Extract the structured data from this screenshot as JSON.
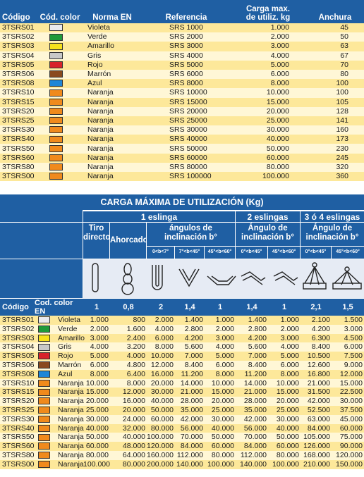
{
  "table1": {
    "headers": [
      "Código",
      "Cód. color",
      "Norma EN",
      "Referencia",
      "Carga max.\nde utiliz. kg",
      "Anchura"
    ],
    "rows": [
      {
        "code": "3TSRS01",
        "color": "#e9e9ee",
        "name": "Violeta",
        "ref": "SRS 1000",
        "carga": "1.000",
        "anchura": "45"
      },
      {
        "code": "3TSRS02",
        "color": "#1f9a3a",
        "name": "Verde",
        "ref": "SRS 2000",
        "carga": "2.000",
        "anchura": "50"
      },
      {
        "code": "3TSRS03",
        "color": "#f6e11b",
        "name": "Amarillo",
        "ref": "SRS 3000",
        "carga": "3.000",
        "anchura": "63"
      },
      {
        "code": "3TSRS04",
        "color": "#c8c8c8",
        "name": "Gris",
        "ref": "SRS 4000",
        "carga": "4.000",
        "anchura": "67"
      },
      {
        "code": "3TSRS05",
        "color": "#d8232a",
        "name": "Rojo",
        "ref": "SRS 5000",
        "carga": "5.000",
        "anchura": "70"
      },
      {
        "code": "3TSRS06",
        "color": "#8a4a1f",
        "name": "Marrón",
        "ref": "SRS 6000",
        "carga": "6.000",
        "anchura": "80"
      },
      {
        "code": "3TSRS08",
        "color": "#1f86d6",
        "name": "Azul",
        "ref": "SRS 8000",
        "carga": "8.000",
        "anchura": "100"
      },
      {
        "code": "3TSRS10",
        "color": "#f08a1c",
        "name": "Naranja",
        "ref": "SRS 10000",
        "carga": "10.000",
        "anchura": "100"
      },
      {
        "code": "3TSRS15",
        "color": "#f08a1c",
        "name": "Naranja",
        "ref": "SRS 15000",
        "carga": "15.000",
        "anchura": "105"
      },
      {
        "code": "3TSRS20",
        "color": "#f08a1c",
        "name": "Naranja",
        "ref": "SRS 20000",
        "carga": "20.000",
        "anchura": "128"
      },
      {
        "code": "3TSRS25",
        "color": "#f08a1c",
        "name": "Naranja",
        "ref": "SRS 25000",
        "carga": "25.000",
        "anchura": "141"
      },
      {
        "code": "3TSRS30",
        "color": "#f08a1c",
        "name": "Naranja",
        "ref": "SRS 30000",
        "carga": "30.000",
        "anchura": "160"
      },
      {
        "code": "3TSRS40",
        "color": "#f08a1c",
        "name": "Naranja",
        "ref": "SRS 40000",
        "carga": "40.000",
        "anchura": "173"
      },
      {
        "code": "3TSRS50",
        "color": "#f08a1c",
        "name": "Naranja",
        "ref": "SRS 50000",
        "carga": "50.000",
        "anchura": "230"
      },
      {
        "code": "3TSRS60",
        "color": "#f08a1c",
        "name": "Naranja",
        "ref": "SRS 60000",
        "carga": "60.000",
        "anchura": "245"
      },
      {
        "code": "3TSRS80",
        "color": "#f08a1c",
        "name": "Naranja",
        "ref": "SRS 80000",
        "carga": "80.000",
        "anchura": "320"
      },
      {
        "code": "3TSRS00",
        "color": "#f08a1c",
        "name": "Naranja",
        "ref": "SRS 100000",
        "carga": "100.000",
        "anchura": "360"
      }
    ]
  },
  "section_title": "CARGA MÁXIMA DE UTILIZACIÓN (Kg)",
  "table2_header": {
    "group_1": "1 eslinga",
    "group_2": "2 eslingas",
    "group_3": "3 ó 4 eslingas",
    "tiro": "Tiro\ndirecto",
    "ahorcado": "Ahorcado",
    "angulos_1": "ángulos de\ninclinación b°",
    "angulos_2": "Ángulo de\ninclinación b°",
    "angulos_3": "Ángulo de\ninclinación b°",
    "angle_ranges": [
      "0<b<7°",
      "7°<b<45°",
      "45°<b<60°",
      "0°<b<45°",
      "45°<b<60°",
      "0°<b<45°",
      "45°<b<60°"
    ],
    "factors": [
      "1",
      "0,8",
      "2",
      "1,4",
      "1",
      "1,4",
      "1",
      "2,1",
      "1,5"
    ]
  },
  "table2": {
    "headers": [
      "Código",
      "Cod. color EN"
    ],
    "rows": [
      {
        "code": "3TSRS01",
        "color": "#e9e9ee",
        "name": "Violeta",
        "v": [
          "1.000",
          "800",
          "2.000",
          "1.400",
          "1.000",
          "1.400",
          "1.000",
          "2.100",
          "1.500"
        ]
      },
      {
        "code": "3TSRS02",
        "color": "#1f9a3a",
        "name": "Verde",
        "v": [
          "2.000",
          "1.600",
          "4.000",
          "2.800",
          "2.000",
          "2.800",
          "2.000",
          "4.200",
          "3.000"
        ]
      },
      {
        "code": "3TSRS03",
        "color": "#f6e11b",
        "name": "Amarillo",
        "v": [
          "3.000",
          "2.400",
          "6.000",
          "4.200",
          "3.000",
          "4.200",
          "3.000",
          "6.300",
          "4.500"
        ]
      },
      {
        "code": "3TSRS04",
        "color": "#c8c8c8",
        "name": "Gris",
        "v": [
          "4.000",
          "3.200",
          "8.000",
          "5.600",
          "4.000",
          "5.600",
          "4.000",
          "8.400",
          "6.000"
        ]
      },
      {
        "code": "3TSRS05",
        "color": "#d8232a",
        "name": "Rojo",
        "v": [
          "5.000",
          "4.000",
          "10.000",
          "7.000",
          "5.000",
          "7.000",
          "5.000",
          "10.500",
          "7.500"
        ]
      },
      {
        "code": "3TSRS06",
        "color": "#8a4a1f",
        "name": "Marrón",
        "v": [
          "6.000",
          "4.800",
          "12.000",
          "8.400",
          "6.000",
          "8.400",
          "6.000",
          "12.600",
          "9.000"
        ]
      },
      {
        "code": "3TSRS08",
        "color": "#1f86d6",
        "name": "Azul",
        "v": [
          "8.000",
          "6.400",
          "16.000",
          "11.200",
          "8.000",
          "11.200",
          "8.000",
          "16.800",
          "12.000"
        ]
      },
      {
        "code": "3TSRS10",
        "color": "#f08a1c",
        "name": "Naranja",
        "v": [
          "10.000",
          "8.000",
          "20.000",
          "14.000",
          "10.000",
          "14.000",
          "10.000",
          "21.000",
          "15.000"
        ]
      },
      {
        "code": "3TSRS15",
        "color": "#f08a1c",
        "name": "Naranja",
        "v": [
          "15.000",
          "12.000",
          "30.000",
          "21.000",
          "15.000",
          "21.000",
          "15.000",
          "31.500",
          "22.500"
        ]
      },
      {
        "code": "3TSRS20",
        "color": "#f08a1c",
        "name": "Naranja",
        "v": [
          "20.000",
          "16.000",
          "40.000",
          "28.000",
          "20.000",
          "28.000",
          "20.000",
          "42.000",
          "30.000"
        ]
      },
      {
        "code": "3TSRS25",
        "color": "#f08a1c",
        "name": "Naranja",
        "v": [
          "25.000",
          "20.000",
          "50.000",
          "35.000",
          "25.000",
          "35.000",
          "25.000",
          "52.500",
          "37.500"
        ]
      },
      {
        "code": "3TSRS30",
        "color": "#f08a1c",
        "name": "Naranja",
        "v": [
          "30.000",
          "24.000",
          "60.000",
          "42.000",
          "30.000",
          "42.000",
          "30.000",
          "63.000",
          "45.000"
        ]
      },
      {
        "code": "3TSRS40",
        "color": "#f08a1c",
        "name": "Naranja",
        "v": [
          "40.000",
          "32.000",
          "80.000",
          "56.000",
          "40.000",
          "56.000",
          "40.000",
          "84.000",
          "60.000"
        ]
      },
      {
        "code": "3TSRS50",
        "color": "#f08a1c",
        "name": "Naranja",
        "v": [
          "50.000",
          "40.000",
          "100.000",
          "70.000",
          "50.000",
          "70.000",
          "50.000",
          "105.000",
          "75.000"
        ]
      },
      {
        "code": "3TSRS60",
        "color": "#f08a1c",
        "name": "Naranja",
        "v": [
          "60.000",
          "48.000",
          "120.000",
          "84.000",
          "60.000",
          "84.000",
          "60.000",
          "126.000",
          "90.000"
        ]
      },
      {
        "code": "3TSRS80",
        "color": "#f08a1c",
        "name": "Naranja",
        "v": [
          "80.000",
          "64.000",
          "160.000",
          "112.000",
          "80.000",
          "112.000",
          "80.000",
          "168.000",
          "120.000"
        ]
      },
      {
        "code": "3TSRS00",
        "color": "#f08a1c",
        "name": "Naranja",
        "v": [
          "100.000",
          "80.000",
          "200.000",
          "140.000",
          "100.000",
          "140.000",
          "100.000",
          "210.000",
          "150.000"
        ]
      }
    ]
  }
}
